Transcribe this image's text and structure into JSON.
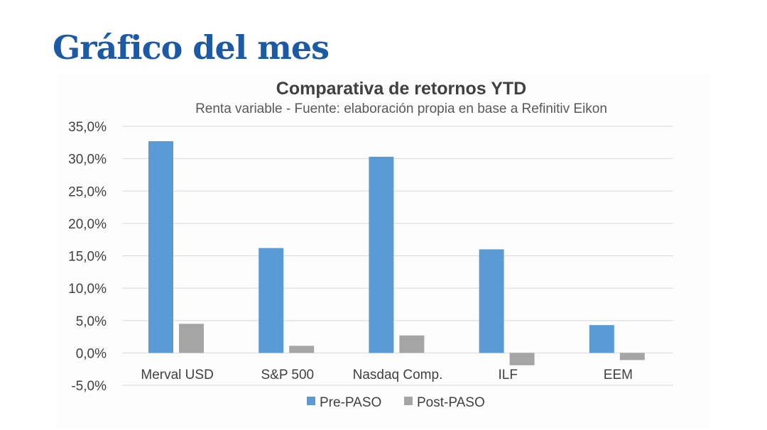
{
  "page_title": "Gráfico del mes",
  "chart_data": {
    "type": "bar",
    "title": "Comparativa de retornos YTD",
    "subtitle": "Renta variable - Fuente: elaboración propia en base a Refinitiv Eikon",
    "categories": [
      "Merval USD",
      "S&P 500",
      "Nasdaq Comp.",
      "ILF",
      "EEM"
    ],
    "series": [
      {
        "name": "Pre-PASO",
        "color": "#5b9bd5",
        "values": [
          32.7,
          16.2,
          30.3,
          16.0,
          4.3
        ]
      },
      {
        "name": "Post-PASO",
        "color": "#a5a5a5",
        "values": [
          4.5,
          1.1,
          2.7,
          -1.9,
          -1.1
        ]
      }
    ],
    "ylim": [
      -5,
      35
    ],
    "yticks": [
      "-5,0%",
      "0,0%",
      "5,0%",
      "10,0%",
      "15,0%",
      "20,0%",
      "25,0%",
      "30,0%",
      "35,0%"
    ],
    "grid": true,
    "legend": "bottom"
  }
}
